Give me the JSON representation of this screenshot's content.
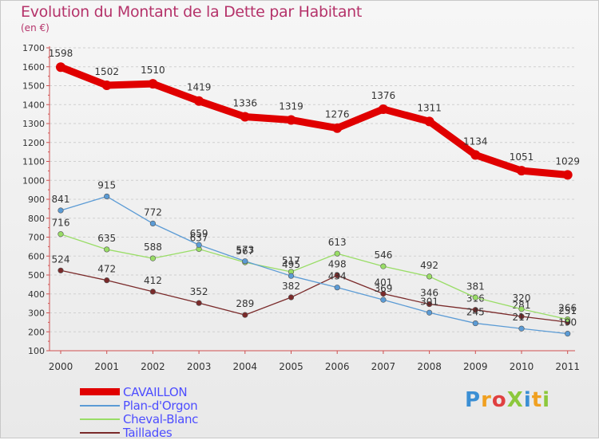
{
  "chart_data": {
    "type": "line",
    "title": "Evolution du Montant de la Dette par Habitant",
    "subtitle": "(en €)",
    "x": [
      "2000",
      "2001",
      "2002",
      "2003",
      "2004",
      "2005",
      "2006",
      "2007",
      "2008",
      "2009",
      "2010",
      "2011"
    ],
    "ylim": [
      100,
      1700
    ],
    "yticks": [
      100,
      200,
      300,
      400,
      500,
      600,
      700,
      800,
      900,
      1000,
      1100,
      1200,
      1300,
      1400,
      1500,
      1600,
      1700
    ],
    "grid": "horizontal dashed",
    "legend_position": "bottom-left",
    "series": [
      {
        "name": "CAVAILLON",
        "color": "#e00000",
        "values": [
          1598,
          1502,
          1510,
          1419,
          1336,
          1319,
          1276,
          1376,
          1311,
          1134,
          1051,
          1029
        ]
      },
      {
        "name": "Plan-d'Orgon",
        "color": "#5b9bd5",
        "values": [
          841,
          915,
          772,
          659,
          573,
          495,
          434,
          369,
          301,
          245,
          217,
          190
        ]
      },
      {
        "name": "Cheval-Blanc",
        "color": "#99dd66",
        "values": [
          716,
          635,
          588,
          637,
          567,
          517,
          613,
          546,
          492,
          381,
          320,
          266
        ]
      },
      {
        "name": "Taillades",
        "color": "#7a2a2a",
        "values": [
          524,
          472,
          412,
          352,
          289,
          382,
          498,
          401,
          346,
          316,
          281,
          251
        ]
      }
    ]
  },
  "logo": {
    "text": "ProXiti"
  }
}
